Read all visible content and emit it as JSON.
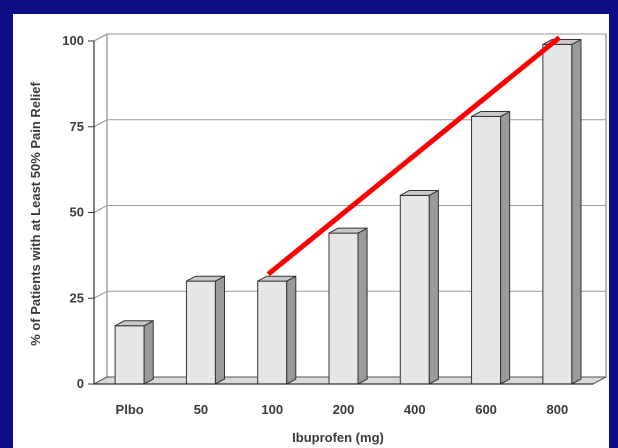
{
  "chart_data": {
    "type": "bar",
    "xlabel": "Ibuprofen (mg)",
    "ylabel": "% of Patients with at Least 50% Pain Relief",
    "categories": [
      "Plbo",
      "50",
      "100",
      "200",
      "400",
      "600",
      "800"
    ],
    "values": [
      17,
      30,
      30,
      44,
      55,
      78,
      99
    ],
    "ylim": [
      0,
      100
    ],
    "yticks": [
      0,
      25,
      50,
      75,
      100
    ],
    "grid": true,
    "trend_line": {
      "from_category": "100",
      "from_value": 32,
      "to_category": "800",
      "to_value": 101,
      "color": "#ff0000"
    },
    "colors": {
      "background": "#0b0b86",
      "bar_front": "#e6e6e6",
      "bar_side": "#9a9a9a",
      "bar_top": "#c8c8c8",
      "gridline": "#9a9a9a"
    }
  }
}
